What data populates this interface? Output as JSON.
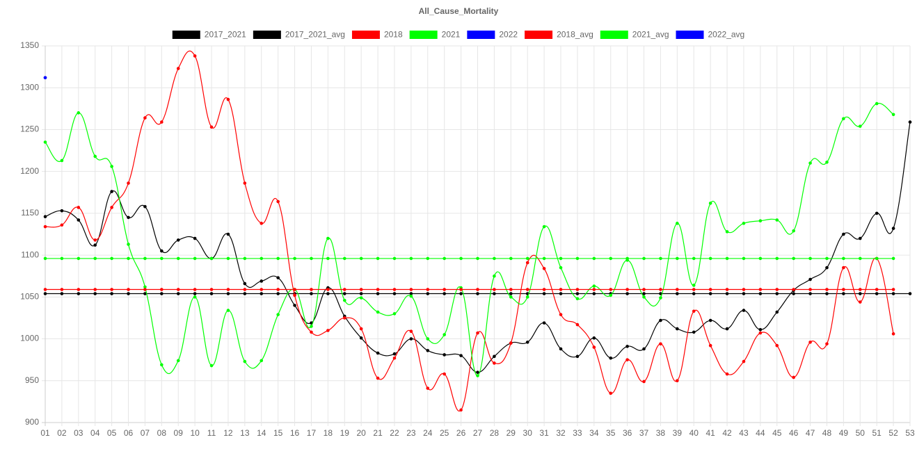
{
  "chart_data": {
    "type": "line",
    "title": "All_Cause_Mortality",
    "categories": [
      "01",
      "02",
      "03",
      "04",
      "05",
      "06",
      "07",
      "08",
      "09",
      "10",
      "11",
      "12",
      "13",
      "14",
      "15",
      "16",
      "17",
      "18",
      "19",
      "20",
      "21",
      "22",
      "23",
      "24",
      "25",
      "26",
      "27",
      "28",
      "29",
      "30",
      "31",
      "32",
      "33",
      "34",
      "35",
      "36",
      "37",
      "38",
      "39",
      "40",
      "41",
      "42",
      "43",
      "44",
      "45",
      "46",
      "47",
      "48",
      "49",
      "50",
      "51",
      "52",
      "53"
    ],
    "ylim": [
      900,
      1350
    ],
    "yticks": [
      900,
      950,
      1000,
      1050,
      1100,
      1150,
      1200,
      1250,
      1300,
      1350
    ],
    "grid": true,
    "legend": "top",
    "series": [
      {
        "name": "2017_2021",
        "color": "#000000",
        "values": [
          1146,
          1153,
          1142,
          1112,
          1176,
          1145,
          1158,
          1105,
          1118,
          1120,
          1096,
          1125,
          1066,
          1069,
          1073,
          1040,
          1019,
          1061,
          1027,
          1001,
          983,
          982,
          1000,
          986,
          981,
          980,
          960,
          979,
          995,
          996,
          1019,
          988,
          979,
          1001,
          977,
          991,
          988,
          1022,
          1012,
          1008,
          1022,
          1012,
          1034,
          1011,
          1032,
          1058,
          1071,
          1085,
          1125,
          1120,
          1150,
          1132,
          1259
        ]
      },
      {
        "name": "2017_2021_avg",
        "color": "#000000",
        "values": [
          1054,
          1054,
          1054,
          1054,
          1054,
          1054,
          1054,
          1054,
          1054,
          1054,
          1054,
          1054,
          1054,
          1054,
          1054,
          1054,
          1054,
          1054,
          1054,
          1054,
          1054,
          1054,
          1054,
          1054,
          1054,
          1054,
          1054,
          1054,
          1054,
          1054,
          1054,
          1054,
          1054,
          1054,
          1054,
          1054,
          1054,
          1054,
          1054,
          1054,
          1054,
          1054,
          1054,
          1054,
          1054,
          1054,
          1054,
          1054,
          1054,
          1054,
          1054,
          1054,
          1054
        ]
      },
      {
        "name": "2018",
        "color": "#ff0000",
        "values": [
          1134,
          1136,
          1157,
          1118,
          1157,
          1186,
          1264,
          1259,
          1323,
          1338,
          1253,
          1286,
          1186,
          1138,
          1164,
          1052,
          1008,
          1010,
          1025,
          1012,
          953,
          977,
          1009,
          941,
          958,
          915,
          1007,
          971,
          995,
          1091,
          1084,
          1029,
          1017,
          990,
          935,
          975,
          949,
          994,
          950,
          1033,
          992,
          958,
          973,
          1007,
          992,
          954,
          996,
          994,
          1085,
          1044,
          1096,
          1006,
          null
        ]
      },
      {
        "name": "2021",
        "color": "#00ff00",
        "values": [
          1235,
          1213,
          1270,
          1218,
          1206,
          1113,
          1062,
          969,
          974,
          1050,
          968,
          1034,
          973,
          974,
          1029,
          1059,
          1015,
          1120,
          1046,
          1049,
          1032,
          1030,
          1051,
          1000,
          1005,
          1061,
          956,
          1075,
          1050,
          1050,
          1134,
          1085,
          1048,
          1063,
          1052,
          1094,
          1050,
          1049,
          1138,
          1064,
          1162,
          1128,
          1138,
          1141,
          1142,
          1129,
          1210,
          1211,
          1263,
          1254,
          1281,
          1268,
          null
        ]
      },
      {
        "name": "2022",
        "color": "#0000ff",
        "values": [
          1312,
          null,
          null,
          null,
          null,
          null,
          null,
          null,
          null,
          null,
          null,
          null,
          null,
          null,
          null,
          null,
          null,
          null,
          null,
          null,
          null,
          null,
          null,
          null,
          null,
          null,
          null,
          null,
          null,
          null,
          null,
          null,
          null,
          null,
          null,
          null,
          null,
          null,
          null,
          null,
          null,
          null,
          null,
          null,
          null,
          null,
          null,
          null,
          null,
          null,
          null,
          null,
          null
        ]
      },
      {
        "name": "2018_avg",
        "color": "#ff0000",
        "values": [
          1059,
          1059,
          1059,
          1059,
          1059,
          1059,
          1059,
          1059,
          1059,
          1059,
          1059,
          1059,
          1059,
          1059,
          1059,
          1059,
          1059,
          1059,
          1059,
          1059,
          1059,
          1059,
          1059,
          1059,
          1059,
          1059,
          1059,
          1059,
          1059,
          1059,
          1059,
          1059,
          1059,
          1059,
          1059,
          1059,
          1059,
          1059,
          1059,
          1059,
          1059,
          1059,
          1059,
          1059,
          1059,
          1059,
          1059,
          1059,
          1059,
          1059,
          1059,
          1059,
          null
        ]
      },
      {
        "name": "2021_avg",
        "color": "#00ff00",
        "values": [
          1096,
          1096,
          1096,
          1096,
          1096,
          1096,
          1096,
          1096,
          1096,
          1096,
          1096,
          1096,
          1096,
          1096,
          1096,
          1096,
          1096,
          1096,
          1096,
          1096,
          1096,
          1096,
          1096,
          1096,
          1096,
          1096,
          1096,
          1096,
          1096,
          1096,
          1096,
          1096,
          1096,
          1096,
          1096,
          1096,
          1096,
          1096,
          1096,
          1096,
          1096,
          1096,
          1096,
          1096,
          1096,
          1096,
          1096,
          1096,
          1096,
          1096,
          1096,
          1096,
          null
        ]
      },
      {
        "name": "2022_avg",
        "color": "#0000ff",
        "values": [
          1312,
          null,
          null,
          null,
          null,
          null,
          null,
          null,
          null,
          null,
          null,
          null,
          null,
          null,
          null,
          null,
          null,
          null,
          null,
          null,
          null,
          null,
          null,
          null,
          null,
          null,
          null,
          null,
          null,
          null,
          null,
          null,
          null,
          null,
          null,
          null,
          null,
          null,
          null,
          null,
          null,
          null,
          null,
          null,
          null,
          null,
          null,
          null,
          null,
          null,
          null,
          null,
          null
        ]
      }
    ]
  }
}
